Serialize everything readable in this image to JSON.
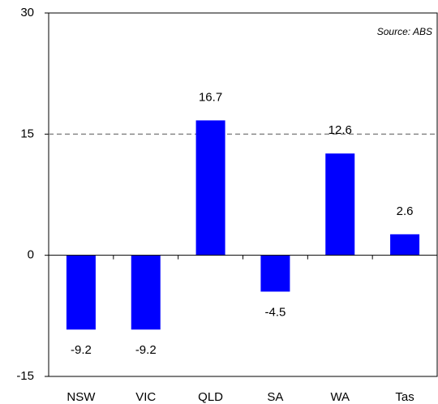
{
  "chart_data": {
    "type": "bar",
    "annotation": "Source: ABS",
    "categories": [
      "NSW",
      "VIC",
      "QLD",
      "SA",
      "WA",
      "Tas"
    ],
    "values": [
      -9.2,
      -9.2,
      16.7,
      -4.5,
      12.6,
      2.6
    ],
    "color": "#0000ff",
    "ylim": [
      -15,
      30
    ],
    "yticks": [
      -15,
      0,
      15,
      30
    ],
    "grid": true
  }
}
